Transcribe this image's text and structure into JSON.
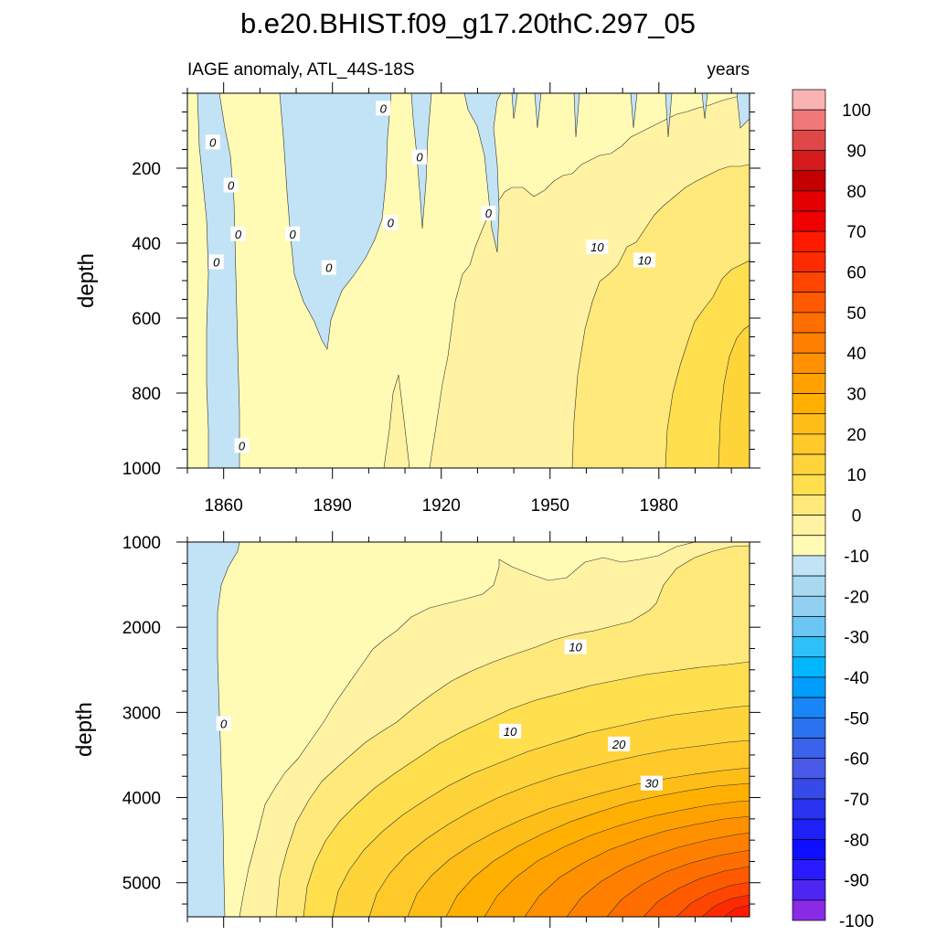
{
  "chart_data": {
    "type": "heatmap",
    "title": "b.e20.BHIST.f09_g17.20thC.297_05",
    "subtitle_left": "IAGE anomaly, ATL_44S-18S",
    "subtitle_right": "years",
    "ylabel": "depth",
    "xlabel": "",
    "x_range": [
      1850,
      2005
    ],
    "x_ticks": [
      1860,
      1890,
      1920,
      1950,
      1980
    ],
    "upper_panel": {
      "ylim": [
        0,
        1000
      ],
      "y_ticks": [
        200,
        400,
        600,
        800,
        1000
      ],
      "contour_labels": [
        {
          "text": "0",
          "x": 1857,
          "y": 130
        },
        {
          "text": "0",
          "x": 1862,
          "y": 245
        },
        {
          "text": "0",
          "x": 1864,
          "y": 375
        },
        {
          "text": "0",
          "x": 1858,
          "y": 450
        },
        {
          "text": "0",
          "x": 1865,
          "y": 940
        },
        {
          "text": "0",
          "x": 1879,
          "y": 375
        },
        {
          "text": "0",
          "x": 1889,
          "y": 465
        },
        {
          "text": "0",
          "x": 1904,
          "y": 40
        },
        {
          "text": "0",
          "x": 1906,
          "y": 345
        },
        {
          "text": "0",
          "x": 1914,
          "y": 170
        },
        {
          "text": "0",
          "x": 1933,
          "y": 320
        },
        {
          "text": "10",
          "x": 1963,
          "y": 410
        },
        {
          "text": "10",
          "x": 1976,
          "y": 445
        }
      ]
    },
    "lower_panel": {
      "ylim": [
        1000,
        5400
      ],
      "y_ticks": [
        1000,
        2000,
        3000,
        4000,
        5000
      ],
      "contour_labels": [
        {
          "text": "0",
          "x": 1860,
          "y": 3130
        },
        {
          "text": "10",
          "x": 1939,
          "y": 3220
        },
        {
          "text": "10",
          "x": 1957,
          "y": 2230
        },
        {
          "text": "20",
          "x": 1969,
          "y": 3370
        },
        {
          "text": "30",
          "x": 1978,
          "y": 3830
        }
      ]
    },
    "colorbar": {
      "levels": [
        -100,
        -95,
        -90,
        -85,
        -80,
        -75,
        -70,
        -65,
        -60,
        -55,
        -50,
        -45,
        -40,
        -35,
        -30,
        -25,
        -20,
        -15,
        -10,
        -5,
        0,
        5,
        10,
        15,
        20,
        25,
        30,
        35,
        40,
        45,
        50,
        55,
        60,
        65,
        70,
        75,
        80,
        85,
        90,
        95,
        100
      ],
      "labels": [
        "100",
        "90",
        "80",
        "70",
        "60",
        "50",
        "40",
        "30",
        "20",
        "10",
        "0",
        "-10",
        "-20",
        "-30",
        "-40",
        "-50",
        "-60",
        "-70",
        "-80",
        "-90",
        "-100"
      ],
      "colors_top_to_bottom": [
        "#f9b3b3",
        "#f07878",
        "#e04848",
        "#d41a1a",
        "#c40000",
        "#e40000",
        "#f00000",
        "#ff1a00",
        "#ff2b00",
        "#ff4500",
        "#ff5a00",
        "#ff6e00",
        "#ff8000",
        "#ff9000",
        "#ffa200",
        "#ffb000",
        "#ffbe17",
        "#ffc92a",
        "#ffd43b",
        "#ffdf4e",
        "#ffe97a",
        "#fff2a2",
        "#fffbb5",
        "#c2e3f5",
        "#a9d9f1",
        "#91d0f1",
        "#6cc6f4",
        "#2ec0f8",
        "#00b7ff",
        "#009dff",
        "#1886f6",
        "#2a72ef",
        "#3b62ea",
        "#4759e6",
        "#364ae8",
        "#2a33ef",
        "#1f20f5",
        "#0f0fff",
        "#2a1aff",
        "#4e26f4",
        "#8a2ae6"
      ]
    }
  }
}
